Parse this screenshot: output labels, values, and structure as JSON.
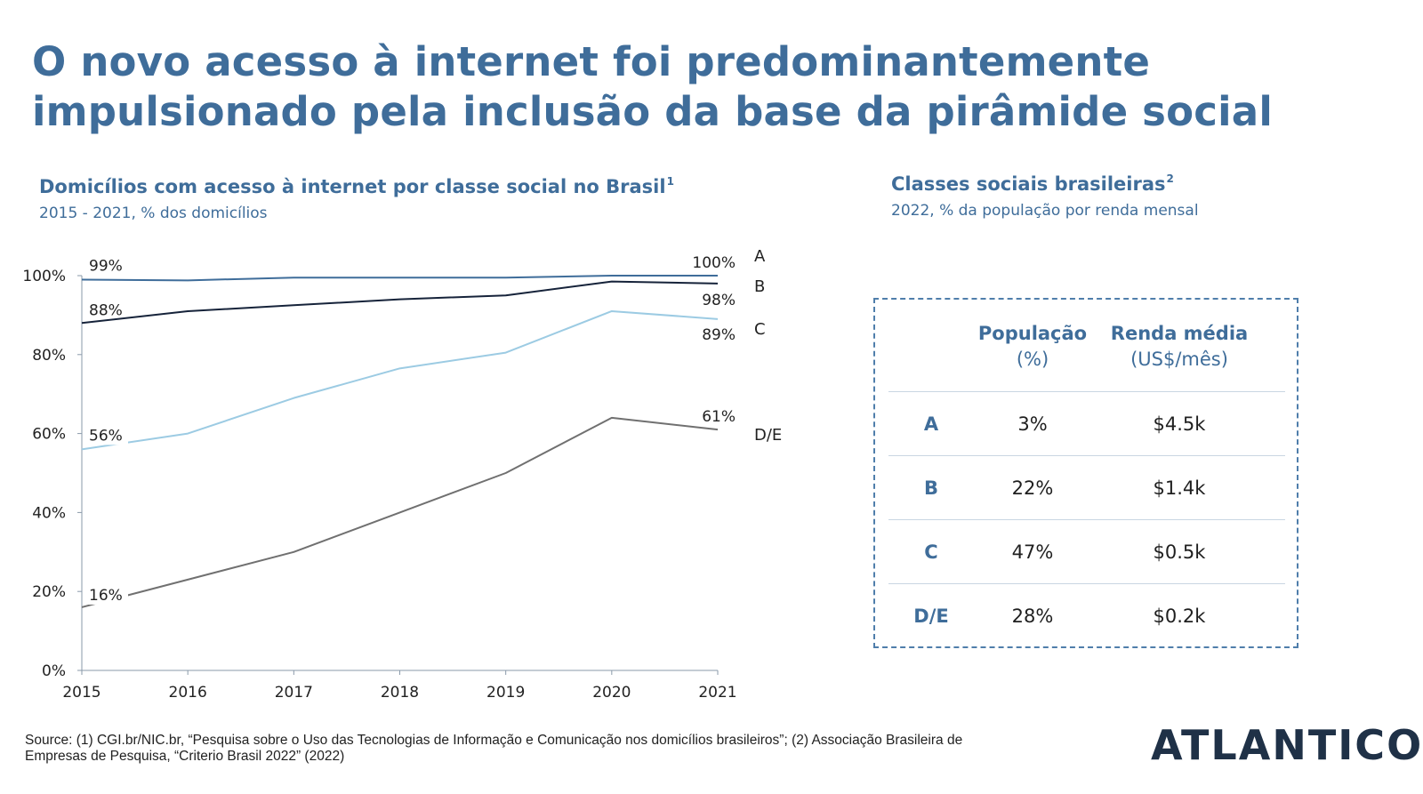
{
  "page": {
    "title_line1": "O novo acesso à internet foi predominantemente",
    "title_line2": "impulsionado pela inclusão da base da pirâmide social"
  },
  "chart_section": {
    "title": "Domicílios com acesso à internet por classe social no Brasil",
    "footnote_mark": "1",
    "caption": "2015 - 2021, % dos domicílios"
  },
  "chart_data": {
    "type": "line",
    "x": [
      2015,
      2016,
      2017,
      2018,
      2019,
      2020,
      2021
    ],
    "ylim": [
      0,
      100
    ],
    "y_ticks": [
      0,
      20,
      40,
      60,
      80,
      100
    ],
    "y_tick_labels": [
      "0%",
      "20%",
      "40%",
      "60%",
      "80%",
      "100%"
    ],
    "x_tick_labels": [
      "2015",
      "2016",
      "2017",
      "2018",
      "2019",
      "2020",
      "2021"
    ],
    "grid": false,
    "series": [
      {
        "name": "A",
        "color": "#3f6d9a",
        "values": [
          99,
          98.8,
          99.5,
          99.5,
          99.5,
          100,
          100
        ],
        "start_label": "99%",
        "end_label": "100%"
      },
      {
        "name": "B",
        "color": "#16233a",
        "values": [
          88,
          91,
          92.5,
          94,
          95,
          98.5,
          98
        ],
        "start_label": "88%",
        "end_label": "98%"
      },
      {
        "name": "C",
        "color": "#9ccbe3",
        "values": [
          56,
          60,
          69,
          76.5,
          80.5,
          91,
          89
        ],
        "start_label": "56%",
        "end_label": "89%"
      },
      {
        "name": "D/E",
        "color": "#707070",
        "values": [
          16,
          23,
          30,
          40,
          50,
          64,
          61
        ],
        "start_label": "16%",
        "end_label": "61%"
      }
    ]
  },
  "table_section": {
    "title": "Classes sociais brasileiras",
    "footnote_mark": "2",
    "caption": "2022, % da população por renda mensal",
    "headers": {
      "population_bold": "População",
      "population_unit": "(%)",
      "income_bold": "Renda média",
      "income_unit": "(US$/mês)"
    },
    "rows": [
      {
        "class": "A",
        "population": "3%",
        "income": "$4.5k"
      },
      {
        "class": "B",
        "population": "22%",
        "income": "$1.4k"
      },
      {
        "class": "C",
        "population": "47%",
        "income": "$0.5k"
      },
      {
        "class": "D/E",
        "population": "28%",
        "income": "$0.2k"
      }
    ]
  },
  "footer": {
    "source_line1": "Source: (1) CGI.br/NIC.br, “Pesquisa sobre o Uso das Tecnologias de Informação e Comunicação nos domicílios brasileiros”; (2) Associação Brasileira de",
    "source_line2": "Empresas de Pesquisa, “Criterio Brasil 2022” (2022)",
    "logo_text": "ATLANTICO"
  }
}
